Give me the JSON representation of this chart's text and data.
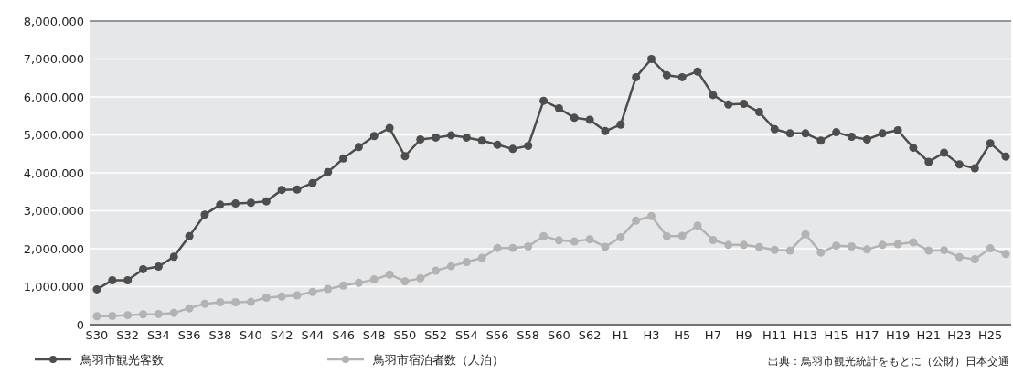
{
  "chart_data": {
    "type": "line",
    "categories": [
      "S30",
      null,
      "S32",
      null,
      "S34",
      null,
      "S36",
      null,
      "S38",
      null,
      "S40",
      null,
      "S42",
      null,
      "S44",
      null,
      "S46",
      null,
      "S48",
      null,
      "S50",
      null,
      "S52",
      null,
      "S54",
      null,
      "S56",
      null,
      "S58",
      null,
      "S60",
      null,
      "S62",
      null,
      "H1",
      null,
      "H3",
      null,
      "H5",
      null,
      "H7",
      null,
      "H9",
      null,
      "H11",
      null,
      "H13",
      null,
      "H15",
      null,
      "H17",
      null,
      "H19",
      null,
      "H21",
      null,
      "H23",
      null,
      "H25",
      null
    ],
    "series": [
      {
        "name": "鳥羽市観光客数",
        "color": "#4d4d4d",
        "values": [
          930000,
          1170000,
          1170000,
          1460000,
          1530000,
          1790000,
          2330000,
          2900000,
          3160000,
          3190000,
          3210000,
          3250000,
          3550000,
          3560000,
          3730000,
          4020000,
          4380000,
          4680000,
          4970000,
          5180000,
          4440000,
          4880000,
          4930000,
          4990000,
          4930000,
          4850000,
          4740000,
          4630000,
          4710000,
          5900000,
          5700000,
          5450000,
          5400000,
          5100000,
          5270000,
          6520000,
          7000000,
          6570000,
          6520000,
          6670000,
          6050000,
          5800000,
          5820000,
          5600000,
          5150000,
          5040000,
          5040000,
          4850000,
          5070000,
          4950000,
          4880000,
          5040000,
          5120000,
          4660000,
          4290000,
          4530000,
          4220000,
          4120000,
          4780000,
          4430000
        ]
      },
      {
        "name": "鳥羽市宿泊者数（人泊）",
        "color": "#b3b3b3",
        "values": [
          220000,
          230000,
          250000,
          270000,
          280000,
          310000,
          430000,
          550000,
          590000,
          590000,
          600000,
          710000,
          740000,
          770000,
          860000,
          940000,
          1030000,
          1100000,
          1190000,
          1320000,
          1140000,
          1220000,
          1420000,
          1540000,
          1650000,
          1760000,
          2020000,
          2020000,
          2060000,
          2330000,
          2220000,
          2190000,
          2250000,
          2050000,
          2300000,
          2740000,
          2860000,
          2330000,
          2340000,
          2610000,
          2230000,
          2100000,
          2100000,
          2040000,
          1970000,
          1950000,
          2380000,
          1900000,
          2080000,
          2060000,
          1980000,
          2100000,
          2120000,
          2170000,
          1950000,
          1960000,
          1780000,
          1720000,
          2010000,
          1860000
        ]
      }
    ],
    "ylim": [
      0,
      8000000
    ],
    "yticks": [
      {
        "value": 0,
        "label": "0"
      },
      {
        "value": 1000000,
        "label": "1,000,000"
      },
      {
        "value": 2000000,
        "label": "2,000,000"
      },
      {
        "value": 3000000,
        "label": "3,000,000"
      },
      {
        "value": 4000000,
        "label": "4,000,000"
      },
      {
        "value": 5000000,
        "label": "5,000,000"
      },
      {
        "value": 6000000,
        "label": "6,000,000"
      },
      {
        "value": 7000000,
        "label": "7,000,000"
      },
      {
        "value": 8000000,
        "label": "8,000,000"
      }
    ],
    "grid": "y",
    "marker": "circle",
    "legend": "bottom left",
    "annotations": [
      "出典：鳥羽市観光統計をもとに（公財）日本交通"
    ]
  }
}
